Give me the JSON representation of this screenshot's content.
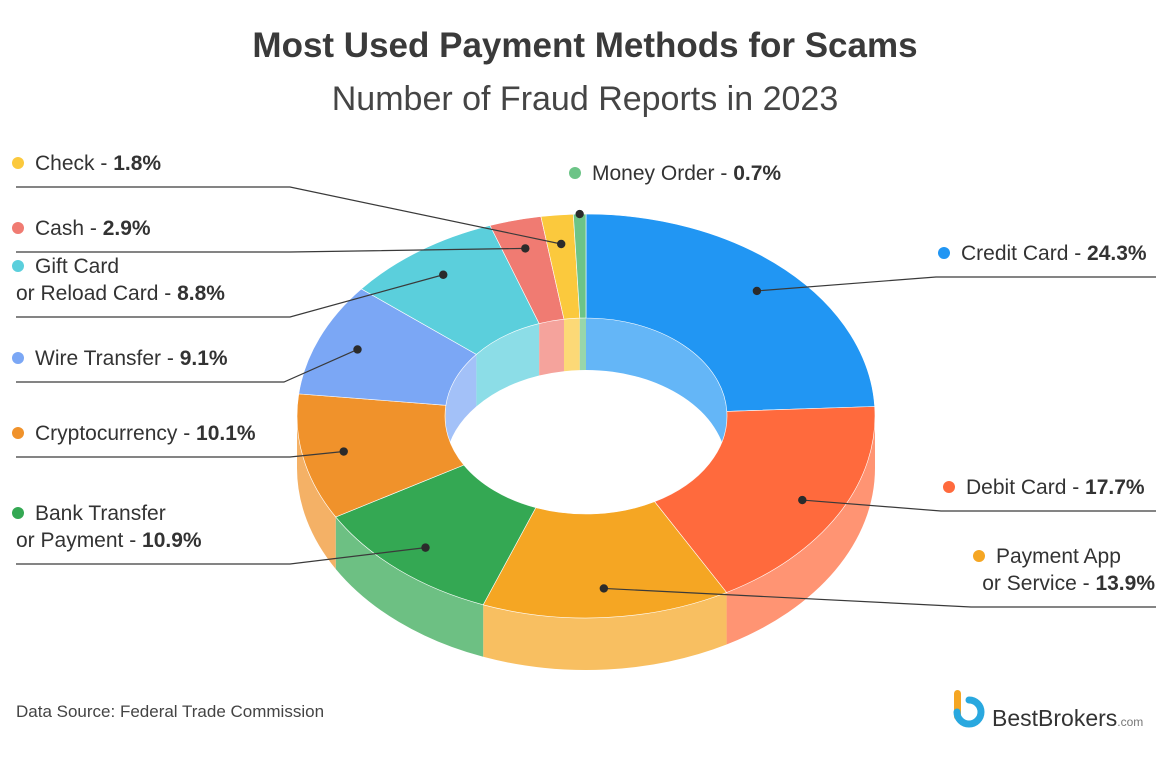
{
  "header": {
    "title": "Most Used Payment Methods for Scams",
    "subtitle": "Number of Fraud Reports in 2023"
  },
  "footer": {
    "source": "Data Source: Federal Trade Commission",
    "brand_name": "BestBrokers",
    "brand_suffix": ".com"
  },
  "chart_data": {
    "type": "pie",
    "style": "3d-donut",
    "title": "Most Used Payment Methods for Scams",
    "subtitle": "Number of Fraud Reports in 2023",
    "unit": "%",
    "slices": [
      {
        "name": "Credit Card",
        "value": 24.3,
        "color": "#2196f3"
      },
      {
        "name": "Debit Card",
        "value": 17.7,
        "color": "#ff6a3d"
      },
      {
        "name": "Payment App or Service",
        "value": 13.9,
        "color": "#f5a623"
      },
      {
        "name": "Bank Transfer or Payment",
        "value": 10.9,
        "color": "#34a853"
      },
      {
        "name": "Cryptocurrency",
        "value": 10.1,
        "color": "#f0922b"
      },
      {
        "name": "Wire Transfer",
        "value": 9.1,
        "color": "#7ba7f5"
      },
      {
        "name": "Gift Card or Reload Card",
        "value": 8.8,
        "color": "#5bcfdc"
      },
      {
        "name": "Cash",
        "value": 2.9,
        "color": "#f07b72"
      },
      {
        "name": "Check",
        "value": 1.8,
        "color": "#fbc93d"
      },
      {
        "name": "Money Order",
        "value": 0.7,
        "color": "#6cc487"
      }
    ],
    "labels": [
      {
        "lines": [
          "Credit Card - "
        ],
        "value": "24.3%"
      },
      {
        "lines": [
          "Debit Card - "
        ],
        "value": "17.7%"
      },
      {
        "lines": [
          "Payment App",
          "or Service - "
        ],
        "value": "13.9%"
      },
      {
        "lines": [
          "Bank Transfer",
          "or Payment - "
        ],
        "value": "10.9%"
      },
      {
        "lines": [
          "Cryptocurrency - "
        ],
        "value": "10.1%"
      },
      {
        "lines": [
          "Wire Transfer - "
        ],
        "value": "9.1%"
      },
      {
        "lines": [
          "Gift Card",
          "or Reload Card - "
        ],
        "value": "8.8%"
      },
      {
        "lines": [
          "Cash - "
        ],
        "value": "2.9%"
      },
      {
        "lines": [
          "Check - "
        ],
        "value": "1.8%"
      },
      {
        "lines": [
          "Money Order - "
        ],
        "value": "0.7%"
      }
    ]
  }
}
